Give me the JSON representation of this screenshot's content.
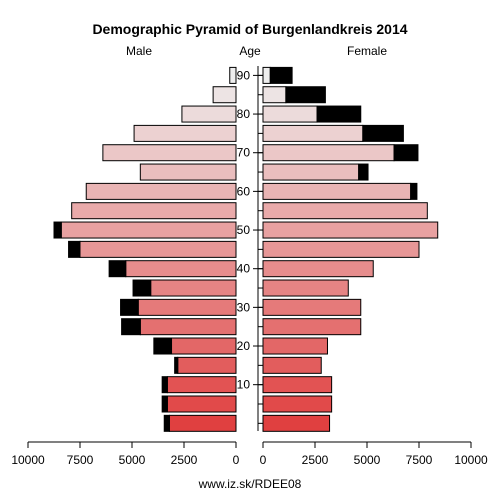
{
  "chart_data": {
    "type": "bar",
    "title": "Demographic Pyramid of Burgenlandkreis 2014",
    "left_label": "Male",
    "center_label": "Age",
    "right_label": "Female",
    "footer": "www.iz.sk/RDEE08",
    "x_ticks": [
      "10000",
      "7500",
      "5000",
      "2500",
      "0",
      "0",
      "2500",
      "5000",
      "7500",
      "10000"
    ],
    "xlim": [
      0,
      10000
    ],
    "age_ticks": [
      {
        "label": "10",
        "age": 10
      },
      {
        "label": "20",
        "age": 20
      },
      {
        "label": "30",
        "age": 30
      },
      {
        "label": "40",
        "age": 40
      },
      {
        "label": "50",
        "age": 50
      },
      {
        "label": "60",
        "age": 60
      },
      {
        "label": "70",
        "age": 70
      },
      {
        "label": "80",
        "age": 80
      },
      {
        "label": "90",
        "age": 90
      }
    ],
    "age_groups": [
      "0-4",
      "5-9",
      "10-14",
      "15-19",
      "20-24",
      "25-29",
      "30-34",
      "35-39",
      "40-44",
      "45-49",
      "50-54",
      "55-59",
      "60-64",
      "65-69",
      "70-74",
      "75-79",
      "80-84",
      "85-89",
      "90+"
    ],
    "male": {
      "base": [
        3200,
        3300,
        3300,
        2800,
        3100,
        4600,
        4700,
        4100,
        5300,
        7500,
        8400,
        7900,
        7200,
        4600,
        6400,
        4900,
        2600,
        1100,
        300
      ],
      "excess": [
        250,
        250,
        250,
        150,
        850,
        900,
        850,
        850,
        800,
        550,
        350,
        0,
        0,
        0,
        0,
        0,
        0,
        0,
        0
      ]
    },
    "female": {
      "base": [
        3200,
        3300,
        3300,
        2800,
        3100,
        4700,
        4700,
        4100,
        5300,
        7500,
        8400,
        7900,
        7100,
        4600,
        6300,
        4800,
        2600,
        1100,
        350
      ],
      "excess": [
        0,
        0,
        0,
        0,
        0,
        0,
        0,
        0,
        0,
        0,
        0,
        0,
        300,
        450,
        1150,
        1950,
        2100,
        1900,
        1050
      ]
    },
    "colors": {
      "excess": "#000000",
      "bottom_bar": "#e04040",
      "top_bar": "#eeeeee",
      "stroke": "#000000"
    }
  }
}
